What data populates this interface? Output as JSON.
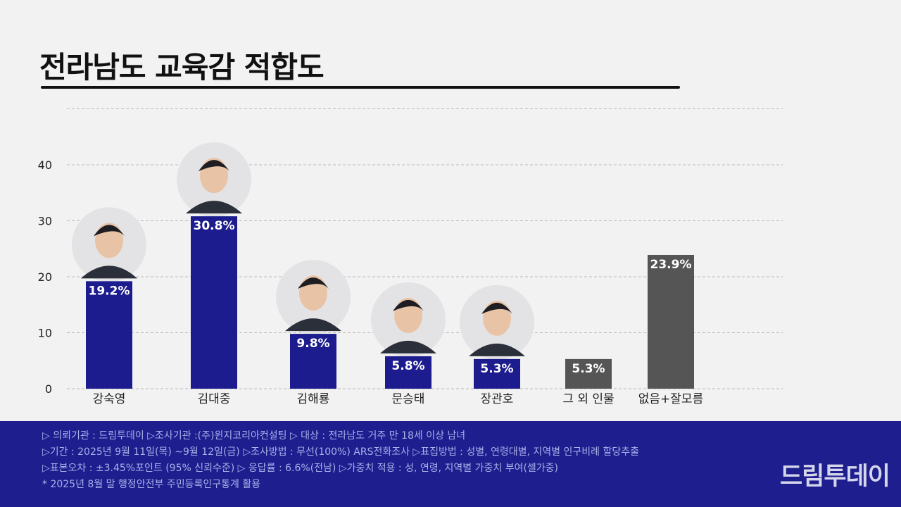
{
  "title": "전라남도 교육감 적합도",
  "colors": {
    "bar_candidate": "#1c1c8e",
    "bar_other": "#555555",
    "footer_bg": "#1e1e8f",
    "grid": "#bbbbbb"
  },
  "chart_data": {
    "type": "bar",
    "title": "전라남도 교육감 적합도",
    "xlabel": "",
    "ylabel": "",
    "ylim": [
      0,
      50
    ],
    "yticks": [
      0,
      10,
      20,
      30,
      40
    ],
    "grid": true,
    "categories": [
      "강숙영",
      "김대중",
      "김해룡",
      "문승태",
      "장관호",
      "그 외 인물",
      "없음+잘모름"
    ],
    "values": [
      19.2,
      30.8,
      9.8,
      5.8,
      5.3,
      5.3,
      23.9
    ],
    "value_labels": [
      "19.2%",
      "30.8%",
      "9.8%",
      "5.8%",
      "5.3%",
      "5.3%",
      "23.9%"
    ],
    "has_photo": [
      true,
      true,
      true,
      true,
      true,
      false,
      false
    ],
    "bar_color_keys": [
      "candidate",
      "candidate",
      "candidate",
      "candidate",
      "candidate",
      "other",
      "other"
    ]
  },
  "footer": {
    "lines": [
      "▷ 의뢰기관 : 드림투데이  ▷조사기관 :(주)윈지코리아컨설팅  ▷ 대상 : 전라남도 거주 만 18세 이상 남녀",
      "▷기간 : 2025년 9월 11일(목) ~9월 12일(금) ▷조사방법 : 무선(100%) ARS전화조사 ▷표집방법 : 성별, 연령대별, 지역별  인구비례 할당추출",
      "▷표본오차 : ±3.45%포인트 (95% 신뢰수준)  ▷ 응답률 : 6.6%(전남) ▷가중치 적용 : 성, 연령, 지역별 가중치 부여(셀가중)",
      "* 2025년 8월 말 행정안전부 주민등록인구통계 활용"
    ],
    "logo": "드림투데이"
  }
}
